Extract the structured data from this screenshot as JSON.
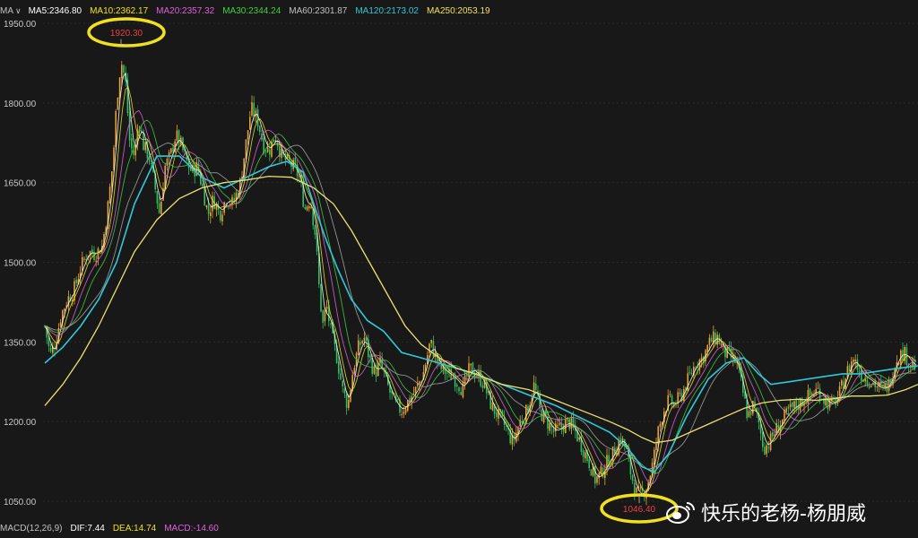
{
  "indicator_bar": {
    "label": "MA",
    "items": [
      {
        "text": "MA5:2346.80",
        "color": "#ffffff"
      },
      {
        "text": "MA10:2362.17",
        "color": "#f0e020"
      },
      {
        "text": "MA20:2357.32",
        "color": "#e060e0"
      },
      {
        "text": "MA30:2344.24",
        "color": "#40d040"
      },
      {
        "text": "MA60:2301.87",
        "color": "#c0c0c0"
      },
      {
        "text": "MA120:2173.02",
        "color": "#30c8d8"
      },
      {
        "text": "MA250:2053.19",
        "color": "#f0e060"
      }
    ]
  },
  "macd_bar": {
    "items": [
      {
        "text": "MACD(12,26,9)",
        "color": "#c0c0c0"
      },
      {
        "text": "DIF:7.44",
        "color": "#ffffff"
      },
      {
        "text": "DEA:14.74",
        "color": "#f0e020"
      },
      {
        "text": "MACD:-14.60",
        "color": "#e060e0"
      }
    ]
  },
  "watermark": {
    "text": "快乐的老杨-杨朋威"
  },
  "chart_data": {
    "type": "line",
    "ylim": [
      1020,
      1960
    ],
    "y_ticks": [
      "1950.00",
      "1800.00",
      "1650.00",
      "1500.00",
      "1350.00",
      "1200.00",
      "1050.00"
    ],
    "y_tick_values": [
      1950,
      1800,
      1650,
      1500,
      1350,
      1200,
      1050
    ],
    "annotations": [
      {
        "label": "1920.30",
        "x": 135,
        "value": 1920.3
      },
      {
        "label": "1046.40",
        "x": 713,
        "value": 1046.4
      }
    ],
    "price": [
      [
        50,
        1380
      ],
      [
        56,
        1325
      ],
      [
        62,
        1350
      ],
      [
        68,
        1400
      ],
      [
        75,
        1430
      ],
      [
        82,
        1445
      ],
      [
        90,
        1490
      ],
      [
        98,
        1520
      ],
      [
        106,
        1515
      ],
      [
        114,
        1530
      ],
      [
        120,
        1600
      ],
      [
        126,
        1690
      ],
      [
        130,
        1800
      ],
      [
        135,
        1880
      ],
      [
        140,
        1840
      ],
      [
        145,
        1720
      ],
      [
        150,
        1700
      ],
      [
        155,
        1770
      ],
      [
        160,
        1720
      ],
      [
        166,
        1700
      ],
      [
        172,
        1650
      ],
      [
        178,
        1590
      ],
      [
        184,
        1680
      ],
      [
        190,
        1700
      ],
      [
        196,
        1740
      ],
      [
        202,
        1720
      ],
      [
        208,
        1690
      ],
      [
        214,
        1670
      ],
      [
        220,
        1680
      ],
      [
        226,
        1640
      ],
      [
        232,
        1590
      ],
      [
        238,
        1620
      ],
      [
        245,
        1590
      ],
      [
        252,
        1620
      ],
      [
        260,
        1610
      ],
      [
        268,
        1650
      ],
      [
        274,
        1720
      ],
      [
        280,
        1790
      ],
      [
        287,
        1770
      ],
      [
        294,
        1720
      ],
      [
        300,
        1710
      ],
      [
        307,
        1740
      ],
      [
        314,
        1700
      ],
      [
        320,
        1690
      ],
      [
        327,
        1680
      ],
      [
        334,
        1660
      ],
      [
        340,
        1600
      ],
      [
        346,
        1620
      ],
      [
        352,
        1550
      ],
      [
        356,
        1450
      ],
      [
        360,
        1380
      ],
      [
        364,
        1420
      ],
      [
        370,
        1360
      ],
      [
        376,
        1320
      ],
      [
        382,
        1260
      ],
      [
        388,
        1230
      ],
      [
        394,
        1300
      ],
      [
        400,
        1340
      ],
      [
        406,
        1360
      ],
      [
        412,
        1320
      ],
      [
        418,
        1290
      ],
      [
        424,
        1310
      ],
      [
        430,
        1280
      ],
      [
        436,
        1250
      ],
      [
        442,
        1230
      ],
      [
        448,
        1220
      ],
      [
        456,
        1240
      ],
      [
        464,
        1260
      ],
      [
        472,
        1290
      ],
      [
        480,
        1350
      ],
      [
        486,
        1320
      ],
      [
        492,
        1300
      ],
      [
        500,
        1290
      ],
      [
        508,
        1280
      ],
      [
        516,
        1260
      ],
      [
        524,
        1300
      ],
      [
        532,
        1290
      ],
      [
        540,
        1270
      ],
      [
        548,
        1230
      ],
      [
        556,
        1210
      ],
      [
        564,
        1190
      ],
      [
        572,
        1160
      ],
      [
        580,
        1200
      ],
      [
        588,
        1220
      ],
      [
        596,
        1270
      ],
      [
        602,
        1220
      ],
      [
        610,
        1200
      ],
      [
        618,
        1180
      ],
      [
        626,
        1190
      ],
      [
        634,
        1200
      ],
      [
        642,
        1180
      ],
      [
        650,
        1150
      ],
      [
        658,
        1120
      ],
      [
        664,
        1090
      ],
      [
        670,
        1100
      ],
      [
        676,
        1120
      ],
      [
        684,
        1140
      ],
      [
        692,
        1170
      ],
      [
        698,
        1150
      ],
      [
        704,
        1100
      ],
      [
        710,
        1065
      ],
      [
        716,
        1062
      ],
      [
        722,
        1080
      ],
      [
        728,
        1120
      ],
      [
        734,
        1180
      ],
      [
        740,
        1220
      ],
      [
        746,
        1240
      ],
      [
        752,
        1230
      ],
      [
        760,
        1250
      ],
      [
        768,
        1280
      ],
      [
        776,
        1310
      ],
      [
        784,
        1320
      ],
      [
        792,
        1350
      ],
      [
        800,
        1360
      ],
      [
        808,
        1330
      ],
      [
        816,
        1320
      ],
      [
        822,
        1310
      ],
      [
        828,
        1260
      ],
      [
        834,
        1210
      ],
      [
        840,
        1230
      ],
      [
        846,
        1200
      ],
      [
        852,
        1150
      ],
      [
        858,
        1160
      ],
      [
        864,
        1180
      ],
      [
        872,
        1200
      ],
      [
        880,
        1220
      ],
      [
        888,
        1230
      ],
      [
        896,
        1240
      ],
      [
        904,
        1250
      ],
      [
        912,
        1260
      ],
      [
        920,
        1240
      ],
      [
        928,
        1230
      ],
      [
        936,
        1250
      ],
      [
        944,
        1290
      ],
      [
        952,
        1320
      ],
      [
        960,
        1290
      ],
      [
        968,
        1280
      ],
      [
        976,
        1270
      ],
      [
        984,
        1260
      ],
      [
        992,
        1270
      ],
      [
        1000,
        1320
      ],
      [
        1008,
        1330
      ],
      [
        1016,
        1310
      ],
      [
        1024,
        1300
      ]
    ],
    "ma120": [
      [
        50,
        1310
      ],
      [
        70,
        1340
      ],
      [
        90,
        1380
      ],
      [
        110,
        1430
      ],
      [
        130,
        1500
      ],
      [
        150,
        1610
      ],
      [
        175,
        1700
      ],
      [
        200,
        1700
      ],
      [
        225,
        1660
      ],
      [
        250,
        1640
      ],
      [
        275,
        1660
      ],
      [
        300,
        1680
      ],
      [
        320,
        1690
      ],
      [
        338,
        1670
      ],
      [
        350,
        1610
      ],
      [
        362,
        1550
      ],
      [
        376,
        1490
      ],
      [
        392,
        1430
      ],
      [
        410,
        1390
      ],
      [
        428,
        1370
      ],
      [
        448,
        1330
      ],
      [
        470,
        1320
      ],
      [
        500,
        1305
      ],
      [
        530,
        1290
      ],
      [
        560,
        1270
      ],
      [
        590,
        1250
      ],
      [
        620,
        1230
      ],
      [
        650,
        1205
      ],
      [
        680,
        1180
      ],
      [
        700,
        1150
      ],
      [
        716,
        1115
      ],
      [
        730,
        1105
      ],
      [
        746,
        1140
      ],
      [
        766,
        1210
      ],
      [
        790,
        1280
      ],
      [
        810,
        1310
      ],
      [
        830,
        1320
      ],
      [
        846,
        1290
      ],
      [
        860,
        1270
      ],
      [
        880,
        1275
      ],
      [
        900,
        1280
      ],
      [
        920,
        1285
      ],
      [
        940,
        1290
      ],
      [
        960,
        1290
      ],
      [
        980,
        1295
      ],
      [
        1000,
        1300
      ],
      [
        1024,
        1305
      ]
    ],
    "ma250": [
      [
        50,
        1230
      ],
      [
        70,
        1270
      ],
      [
        90,
        1320
      ],
      [
        110,
        1380
      ],
      [
        130,
        1450
      ],
      [
        150,
        1520
      ],
      [
        175,
        1580
      ],
      [
        200,
        1620
      ],
      [
        225,
        1640
      ],
      [
        250,
        1650
      ],
      [
        275,
        1655
      ],
      [
        300,
        1662
      ],
      [
        325,
        1660
      ],
      [
        350,
        1640
      ],
      [
        372,
        1610
      ],
      [
        392,
        1560
      ],
      [
        412,
        1500
      ],
      [
        432,
        1440
      ],
      [
        452,
        1380
      ],
      [
        470,
        1345
      ],
      [
        490,
        1320
      ],
      [
        510,
        1300
      ],
      [
        530,
        1290
      ],
      [
        560,
        1270
      ],
      [
        590,
        1260
      ],
      [
        620,
        1240
      ],
      [
        650,
        1220
      ],
      [
        680,
        1200
      ],
      [
        700,
        1185
      ],
      [
        716,
        1170
      ],
      [
        730,
        1160
      ],
      [
        750,
        1165
      ],
      [
        770,
        1180
      ],
      [
        790,
        1195
      ],
      [
        810,
        1210
      ],
      [
        830,
        1225
      ],
      [
        850,
        1235
      ],
      [
        870,
        1240
      ],
      [
        890,
        1242
      ],
      [
        910,
        1240
      ],
      [
        930,
        1243
      ],
      [
        950,
        1248
      ],
      [
        970,
        1248
      ],
      [
        990,
        1250
      ],
      [
        1010,
        1260
      ],
      [
        1024,
        1270
      ]
    ]
  }
}
